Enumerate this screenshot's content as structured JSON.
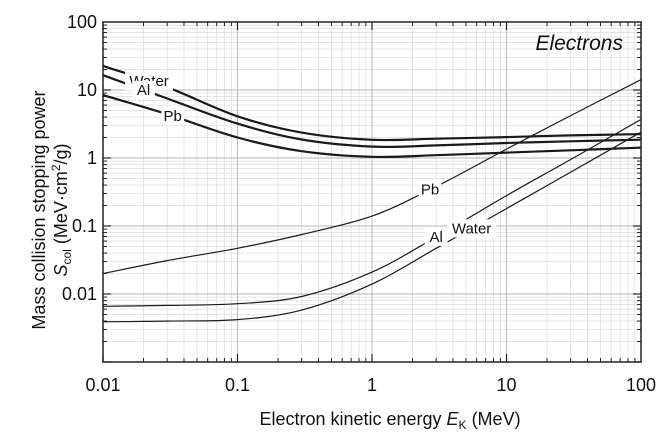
{
  "chart_data": {
    "type": "line",
    "title": "Electrons",
    "xlabel": {
      "prefix": "Electron kinetic energy ",
      "var": "E",
      "sub": "K",
      "suffix": " (MeV)"
    },
    "ylabel": {
      "line1": "Mass collision stopping power",
      "var": "S",
      "sub": "col",
      "unit_a": " (MeV·cm",
      "unit_sup": "2",
      "unit_b": "/g)"
    },
    "x_scale": "log",
    "y_scale": "log",
    "xlim": [
      0.01,
      100
    ],
    "ylim": [
      0.001,
      100
    ],
    "grid": true,
    "x_ticks": [
      "0.01",
      "0.1",
      "1",
      "10",
      "100"
    ],
    "y_ticks": [
      "0.01",
      "0.1",
      "1",
      "10",
      "100"
    ],
    "series": [
      {
        "name": "Water",
        "group": "collision",
        "x": [
          0.01,
          0.03,
          0.1,
          0.3,
          1,
          3,
          10,
          30,
          100
        ],
        "y": [
          22.6,
          11.0,
          4.1,
          2.36,
          1.85,
          1.92,
          2.03,
          2.15,
          2.25
        ]
      },
      {
        "name": "Al",
        "group": "collision",
        "x": [
          0.01,
          0.03,
          0.1,
          0.3,
          1,
          3,
          10,
          30,
          100
        ],
        "y": [
          16.5,
          7.5,
          3.2,
          1.87,
          1.47,
          1.53,
          1.66,
          1.76,
          1.86
        ]
      },
      {
        "name": "Pb",
        "group": "collision",
        "x": [
          0.01,
          0.03,
          0.1,
          0.3,
          1,
          3,
          10,
          30,
          100
        ],
        "y": [
          8.4,
          4.4,
          2.0,
          1.26,
          1.04,
          1.1,
          1.2,
          1.3,
          1.42
        ]
      },
      {
        "name": "Pb",
        "group": "radiative",
        "x": [
          0.01,
          0.03,
          0.1,
          0.3,
          1,
          3,
          10,
          30,
          100
        ],
        "y": [
          0.02,
          0.031,
          0.047,
          0.075,
          0.14,
          0.38,
          1.35,
          4.2,
          14.2
        ]
      },
      {
        "name": "Al",
        "group": "radiative",
        "x": [
          0.01,
          0.03,
          0.1,
          0.3,
          1,
          3,
          10,
          30,
          100
        ],
        "y": [
          0.0066,
          0.0068,
          0.0072,
          0.0092,
          0.021,
          0.069,
          0.28,
          0.95,
          3.7
        ]
      },
      {
        "name": "Water",
        "group": "radiative",
        "x": [
          0.01,
          0.03,
          0.1,
          0.3,
          1,
          3,
          10,
          30,
          100
        ],
        "y": [
          0.0039,
          0.004,
          0.0042,
          0.0058,
          0.014,
          0.047,
          0.18,
          0.62,
          2.4
        ]
      }
    ],
    "series_labels": [
      {
        "text": "Water",
        "series": 0,
        "at_x": 0.022
      },
      {
        "text": "Al",
        "series": 1,
        "at_x": 0.02
      },
      {
        "text": "Pb",
        "series": 2,
        "at_x": 0.033
      },
      {
        "text": "Pb",
        "series": 3,
        "at_x": 2.7
      },
      {
        "text": "Al",
        "series": 4,
        "at_x": 3.0
      },
      {
        "text": "Water",
        "series": 5,
        "at_x": 5.5
      }
    ],
    "colors": {
      "line": "#1a1a1a",
      "grid_major": "#b4b4b4",
      "grid_minor": "#dcdcdc",
      "frame": "#222222"
    }
  }
}
